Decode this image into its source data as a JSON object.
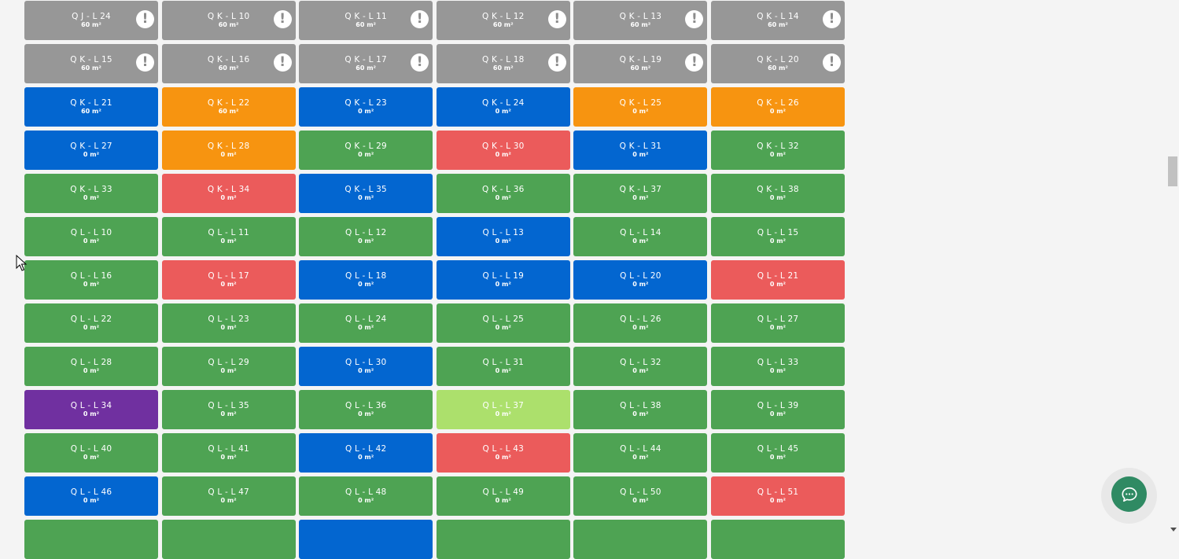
{
  "status_colors": {
    "gray": "#979797",
    "blue": "#0366d0",
    "orange": "#f79410",
    "green": "#4ea353",
    "red": "#eb5b5b",
    "purple": "#7030a0",
    "lime": "#ace06c"
  },
  "alert_icon": "exclamation-circle-icon",
  "chat_icon": "chat-bubble-icon",
  "lots": [
    {
      "name": "Q J - L 24",
      "area": "60 m²",
      "status": "gray",
      "alert": true
    },
    {
      "name": "Q K - L 10",
      "area": "60 m²",
      "status": "gray",
      "alert": true
    },
    {
      "name": "Q K - L 11",
      "area": "60 m²",
      "status": "gray",
      "alert": true
    },
    {
      "name": "Q K - L 12",
      "area": "60 m²",
      "status": "gray",
      "alert": true
    },
    {
      "name": "Q K - L 13",
      "area": "60 m²",
      "status": "gray",
      "alert": true
    },
    {
      "name": "Q K - L 14",
      "area": "60 m²",
      "status": "gray",
      "alert": true
    },
    {
      "name": "Q K - L 15",
      "area": "60 m²",
      "status": "gray",
      "alert": true
    },
    {
      "name": "Q K - L 16",
      "area": "60 m²",
      "status": "gray",
      "alert": true
    },
    {
      "name": "Q K - L 17",
      "area": "60 m²",
      "status": "gray",
      "alert": true
    },
    {
      "name": "Q K - L 18",
      "area": "60 m²",
      "status": "gray",
      "alert": true
    },
    {
      "name": "Q K - L 19",
      "area": "60 m²",
      "status": "gray",
      "alert": true
    },
    {
      "name": "Q K - L 20",
      "area": "60 m²",
      "status": "gray",
      "alert": true
    },
    {
      "name": "Q K - L 21",
      "area": "60 m²",
      "status": "blue"
    },
    {
      "name": "Q K - L 22",
      "area": "60 m²",
      "status": "orange"
    },
    {
      "name": "Q K - L 23",
      "area": "0 m²",
      "status": "blue"
    },
    {
      "name": "Q K - L 24",
      "area": "0 m²",
      "status": "blue"
    },
    {
      "name": "Q K - L 25",
      "area": "0 m²",
      "status": "orange"
    },
    {
      "name": "Q K - L 26",
      "area": "0 m²",
      "status": "orange"
    },
    {
      "name": "Q K - L 27",
      "area": "0 m²",
      "status": "blue"
    },
    {
      "name": "Q K - L 28",
      "area": "0 m²",
      "status": "orange"
    },
    {
      "name": "Q K - L 29",
      "area": "0 m²",
      "status": "green"
    },
    {
      "name": "Q K - L 30",
      "area": "0 m²",
      "status": "red"
    },
    {
      "name": "Q K - L 31",
      "area": "0 m²",
      "status": "blue"
    },
    {
      "name": "Q K - L 32",
      "area": "0 m²",
      "status": "green"
    },
    {
      "name": "Q K - L 33",
      "area": "0 m²",
      "status": "green"
    },
    {
      "name": "Q K - L 34",
      "area": "0 m²",
      "status": "red"
    },
    {
      "name": "Q K - L 35",
      "area": "0 m²",
      "status": "blue"
    },
    {
      "name": "Q K - L 36",
      "area": "0 m²",
      "status": "green"
    },
    {
      "name": "Q K - L 37",
      "area": "0 m²",
      "status": "green"
    },
    {
      "name": "Q K - L 38",
      "area": "0 m²",
      "status": "green"
    },
    {
      "name": "Q L - L 10",
      "area": "0 m²",
      "status": "green"
    },
    {
      "name": "Q L - L 11",
      "area": "0 m²",
      "status": "green"
    },
    {
      "name": "Q L - L 12",
      "area": "0 m²",
      "status": "green"
    },
    {
      "name": "Q L - L 13",
      "area": "0 m²",
      "status": "blue"
    },
    {
      "name": "Q L - L 14",
      "area": "0 m²",
      "status": "green"
    },
    {
      "name": "Q L - L 15",
      "area": "0 m²",
      "status": "green"
    },
    {
      "name": "Q L - L 16",
      "area": "0 m²",
      "status": "green"
    },
    {
      "name": "Q L - L 17",
      "area": "0 m²",
      "status": "red"
    },
    {
      "name": "Q L - L 18",
      "area": "0 m²",
      "status": "blue"
    },
    {
      "name": "Q L - L 19",
      "area": "0 m²",
      "status": "blue"
    },
    {
      "name": "Q L - L 20",
      "area": "0 m²",
      "status": "blue"
    },
    {
      "name": "Q L - L 21",
      "area": "0 m²",
      "status": "red"
    },
    {
      "name": "Q L - L 22",
      "area": "0 m²",
      "status": "green"
    },
    {
      "name": "Q L - L 23",
      "area": "0 m²",
      "status": "green"
    },
    {
      "name": "Q L - L 24",
      "area": "0 m²",
      "status": "green"
    },
    {
      "name": "Q L - L 25",
      "area": "0 m²",
      "status": "green"
    },
    {
      "name": "Q L - L 26",
      "area": "0 m²",
      "status": "green"
    },
    {
      "name": "Q L - L 27",
      "area": "0 m²",
      "status": "green"
    },
    {
      "name": "Q L - L 28",
      "area": "0 m²",
      "status": "green"
    },
    {
      "name": "Q L - L 29",
      "area": "0 m²",
      "status": "green"
    },
    {
      "name": "Q L - L 30",
      "area": "0 m²",
      "status": "blue"
    },
    {
      "name": "Q L - L 31",
      "area": "0 m²",
      "status": "green"
    },
    {
      "name": "Q L - L 32",
      "area": "0 m²",
      "status": "green"
    },
    {
      "name": "Q L - L 33",
      "area": "0 m²",
      "status": "green"
    },
    {
      "name": "Q L - L 34",
      "area": "0 m²",
      "status": "purple"
    },
    {
      "name": "Q L - L 35",
      "area": "0 m²",
      "status": "green"
    },
    {
      "name": "Q L - L 36",
      "area": "0 m²",
      "status": "green"
    },
    {
      "name": "Q L - L 37",
      "area": "0 m²",
      "status": "lime"
    },
    {
      "name": "Q L - L 38",
      "area": "0 m²",
      "status": "green"
    },
    {
      "name": "Q L - L 39",
      "area": "0 m²",
      "status": "green"
    },
    {
      "name": "Q L - L 40",
      "area": "0 m²",
      "status": "green"
    },
    {
      "name": "Q L - L 41",
      "area": "0 m²",
      "status": "green"
    },
    {
      "name": "Q L - L 42",
      "area": "0 m²",
      "status": "blue"
    },
    {
      "name": "Q L - L 43",
      "area": "0 m²",
      "status": "red"
    },
    {
      "name": "Q L - L 44",
      "area": "0 m²",
      "status": "green"
    },
    {
      "name": "Q L - L 45",
      "area": "0 m²",
      "status": "green"
    },
    {
      "name": "Q L - L 46",
      "area": "0 m²",
      "status": "blue"
    },
    {
      "name": "Q L - L 47",
      "area": "0 m²",
      "status": "green"
    },
    {
      "name": "Q L - L 48",
      "area": "0 m²",
      "status": "green"
    },
    {
      "name": "Q L - L 49",
      "area": "0 m²",
      "status": "green"
    },
    {
      "name": "Q L - L 50",
      "area": "0 m²",
      "status": "green"
    },
    {
      "name": "Q L - L 51",
      "area": "0 m²",
      "status": "red"
    },
    {
      "name": "",
      "area": "",
      "status": "green"
    },
    {
      "name": "",
      "area": "",
      "status": "green"
    },
    {
      "name": "",
      "area": "",
      "status": "blue"
    },
    {
      "name": "",
      "area": "",
      "status": "green"
    },
    {
      "name": "",
      "area": "",
      "status": "green"
    },
    {
      "name": "",
      "area": "",
      "status": "green"
    }
  ]
}
